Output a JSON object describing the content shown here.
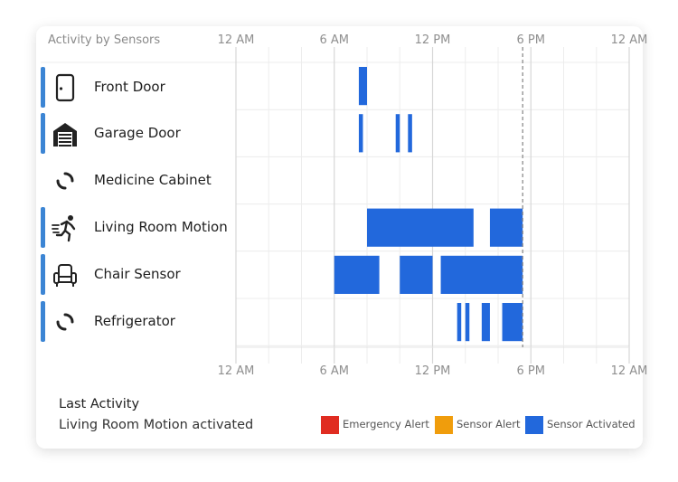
{
  "chart_data": {
    "type": "timeline",
    "title": "Activity by Sensors",
    "x_tick_labels": [
      "12 AM",
      "6 AM",
      "12 PM",
      "6 PM",
      "12 AM"
    ],
    "x_ticks_hours": [
      0,
      6,
      12,
      18,
      24
    ],
    "xlim_hours": [
      0,
      24
    ],
    "now_marker_hours": 17.5,
    "grid": true,
    "legend_position": "bottom-right",
    "sensors": [
      {
        "name": "Front Door",
        "icon": "door-icon",
        "has_activity": true,
        "intervals": [
          [
            7.5,
            8.0
          ]
        ]
      },
      {
        "name": "Garage Door",
        "icon": "garage-icon",
        "has_activity": true,
        "intervals": [
          [
            7.5,
            7.75
          ],
          [
            9.75,
            10.0
          ],
          [
            10.5,
            10.75
          ]
        ]
      },
      {
        "name": "Medicine Cabinet",
        "icon": "link-icon",
        "has_activity": false,
        "intervals": []
      },
      {
        "name": "Living Room Motion",
        "icon": "running-person-icon",
        "has_activity": true,
        "intervals": [
          [
            8.0,
            14.5
          ],
          [
            15.5,
            17.5
          ]
        ]
      },
      {
        "name": "Chair Sensor",
        "icon": "armchair-icon",
        "has_activity": true,
        "intervals": [
          [
            6.0,
            8.75
          ],
          [
            10.0,
            12.0
          ],
          [
            12.5,
            17.5
          ]
        ]
      },
      {
        "name": "Refrigerator",
        "icon": "link-icon",
        "has_activity": true,
        "intervals": [
          [
            13.5,
            13.75
          ],
          [
            14.0,
            14.25
          ],
          [
            15.0,
            15.5
          ],
          [
            16.25,
            17.5
          ]
        ]
      }
    ],
    "legend": [
      {
        "label": "Emergency Alert",
        "color": "#e02c21"
      },
      {
        "label": "Sensor Alert",
        "color": "#f09d0c"
      },
      {
        "label": "Sensor Activated",
        "color": "#2268dc"
      }
    ],
    "bar_color": "#2268dc",
    "accent_color": "#3c85d4"
  },
  "last_activity": {
    "title": "Last Activity",
    "text": "Living Room Motion activated"
  }
}
